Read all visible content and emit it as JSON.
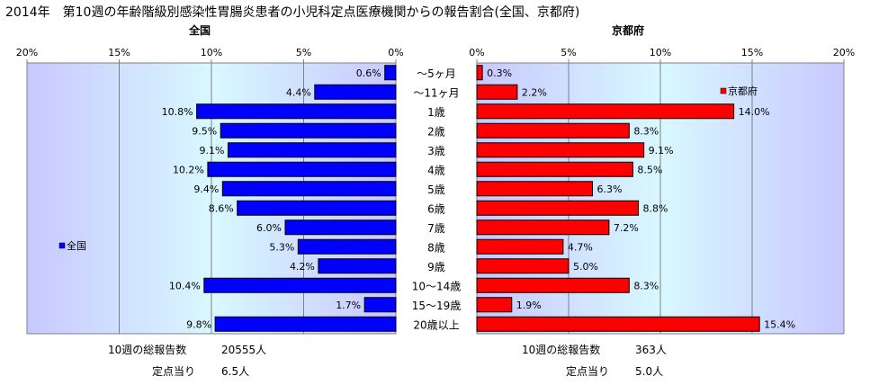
{
  "title": "2014年　第10週の年齢階級別感染性胃腸炎患者の小児科定点医療機関からの報告割合(全国、京都府)",
  "categories": [
    "～5ヶ月",
    "～11ヶ月",
    "1歳",
    "2歳",
    "3歳",
    "4歳",
    "5歳",
    "6歳",
    "7歳",
    "8歳",
    "9歳",
    "10～14歳",
    "15～19歳",
    "20歳以上"
  ],
  "colors": {
    "national": "#0000ff",
    "kyoto": "#ff0000",
    "plot_bg": "#ccccff"
  },
  "chart_data": [
    {
      "type": "bar",
      "orientation": "horizontal",
      "direction": "right-to-left",
      "title": "全国",
      "categories": [
        "～5ヶ月",
        "～11ヶ月",
        "1歳",
        "2歳",
        "3歳",
        "4歳",
        "5歳",
        "6歳",
        "7歳",
        "8歳",
        "9歳",
        "10～14歳",
        "15～19歳",
        "20歳以上"
      ],
      "series": [
        {
          "name": "全国",
          "values": [
            0.6,
            4.4,
            10.8,
            9.5,
            9.1,
            10.2,
            9.4,
            8.6,
            6.0,
            5.3,
            4.2,
            10.4,
            1.7,
            9.8
          ]
        }
      ],
      "labels": [
        "0.6%",
        "4.4%",
        "10.8%",
        "9.5%",
        "9.1%",
        "10.2%",
        "9.4%",
        "8.6%",
        "6.0%",
        "5.3%",
        "4.2%",
        "10.4%",
        "1.7%",
        "9.8%"
      ],
      "xlim": [
        0,
        20
      ],
      "ticks": [
        "20%",
        "15%",
        "10%",
        "5%",
        "0%"
      ],
      "legend": "left",
      "grid": true
    },
    {
      "type": "bar",
      "orientation": "horizontal",
      "direction": "left-to-right",
      "title": "京都府",
      "categories": [
        "～5ヶ月",
        "～11ヶ月",
        "1歳",
        "2歳",
        "3歳",
        "4歳",
        "5歳",
        "6歳",
        "7歳",
        "8歳",
        "9歳",
        "10～14歳",
        "15～19歳",
        "20歳以上"
      ],
      "series": [
        {
          "name": "京都府",
          "values": [
            0.3,
            2.2,
            14.0,
            8.3,
            9.1,
            8.5,
            6.3,
            8.8,
            7.2,
            4.7,
            5.0,
            8.3,
            1.9,
            15.4
          ]
        }
      ],
      "labels": [
        "0.3%",
        "2.2%",
        "14.0%",
        "8.3%",
        "9.1%",
        "8.5%",
        "6.3%",
        "8.8%",
        "7.2%",
        "4.7%",
        "5.0%",
        "8.3%",
        "1.9%",
        "15.4%"
      ],
      "xlim": [
        0,
        20
      ],
      "ticks": [
        "0%",
        "5%",
        "10%",
        "15%",
        "20%"
      ],
      "legend": "top-right",
      "grid": true
    }
  ],
  "footer": {
    "national": {
      "total_label": "10週の総報告数",
      "total_value": "20555人",
      "per_label": "定点当り",
      "per_value": "6.5人"
    },
    "kyoto": {
      "total_label": "10週の総報告数",
      "total_value": "363人",
      "per_label": "定点当り",
      "per_value": "5.0人"
    }
  }
}
